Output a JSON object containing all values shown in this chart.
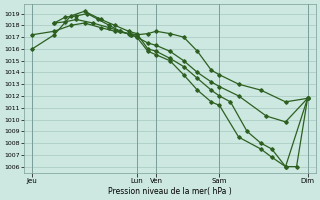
{
  "title": "",
  "xlabel": "Pression niveau de la mer( hPa )",
  "ylabel": "",
  "background_color": "#cce8e0",
  "plot_bg_color": "#cce8e0",
  "grid_color": "#9fbfb8",
  "line_color": "#2d6020",
  "ylim": [
    1005.5,
    1019.8
  ],
  "yticks": [
    1006,
    1007,
    1008,
    1009,
    1010,
    1011,
    1012,
    1013,
    1014,
    1015,
    1016,
    1017,
    1018,
    1019
  ],
  "xlim": [
    -0.3,
    10.3
  ],
  "xtick_positions": [
    0,
    3.8,
    4.5,
    6.8,
    10.0
  ],
  "xtick_labels": [
    "Jeu",
    "Lun",
    "Ven",
    "Sam",
    "Dim"
  ],
  "vlines": [
    0,
    3.8,
    4.5,
    6.8,
    10.0
  ],
  "lines": [
    {
      "x": [
        0.0,
        0.8,
        1.4,
        1.9,
        2.5,
        3.0,
        3.5,
        3.8,
        4.2,
        4.5,
        5.0,
        5.5,
        6.0,
        6.5,
        6.8,
        7.2,
        7.8,
        8.3,
        8.7,
        9.2,
        9.6,
        10.0
      ],
      "y": [
        1016.0,
        1017.2,
        1018.8,
        1019.2,
        1018.5,
        1018.0,
        1017.5,
        1017.3,
        1016.0,
        1015.8,
        1015.2,
        1014.5,
        1013.5,
        1012.5,
        1012.0,
        1011.5,
        1009.0,
        1008.0,
        1007.5,
        1006.0,
        1006.0,
        1011.8
      ]
    },
    {
      "x": [
        0.0,
        0.8,
        1.4,
        1.9,
        2.5,
        3.0,
        3.5,
        3.8,
        4.2,
        4.5,
        5.0,
        5.5,
        6.0,
        6.5,
        6.8,
        7.5,
        8.3,
        9.2,
        10.0
      ],
      "y": [
        1017.2,
        1017.5,
        1018.0,
        1018.2,
        1017.8,
        1017.5,
        1017.3,
        1017.2,
        1017.3,
        1017.5,
        1017.3,
        1017.0,
        1015.8,
        1014.2,
        1013.8,
        1013.0,
        1012.5,
        1011.5,
        1011.8
      ]
    },
    {
      "x": [
        0.8,
        1.2,
        1.6,
        2.0,
        2.4,
        2.8,
        3.2,
        3.6,
        3.8,
        4.2,
        4.5,
        5.0,
        5.5,
        6.0,
        6.5,
        6.8,
        7.5,
        8.3,
        8.7,
        9.2,
        10.0
      ],
      "y": [
        1018.2,
        1018.7,
        1018.8,
        1019.0,
        1018.5,
        1018.0,
        1017.5,
        1017.2,
        1017.0,
        1015.8,
        1015.5,
        1015.0,
        1013.8,
        1012.5,
        1011.5,
        1011.2,
        1008.5,
        1007.5,
        1006.8,
        1006.0,
        1011.8
      ]
    },
    {
      "x": [
        0.8,
        1.2,
        1.6,
        2.2,
        2.8,
        3.2,
        3.6,
        3.8,
        4.2,
        4.5,
        5.0,
        5.5,
        6.0,
        6.5,
        6.8,
        7.5,
        8.5,
        9.2,
        10.0
      ],
      "y": [
        1018.2,
        1018.3,
        1018.5,
        1018.2,
        1017.8,
        1017.5,
        1017.2,
        1017.0,
        1016.5,
        1016.3,
        1015.8,
        1015.0,
        1014.0,
        1013.2,
        1012.8,
        1012.0,
        1010.3,
        1009.8,
        1011.8
      ]
    }
  ]
}
